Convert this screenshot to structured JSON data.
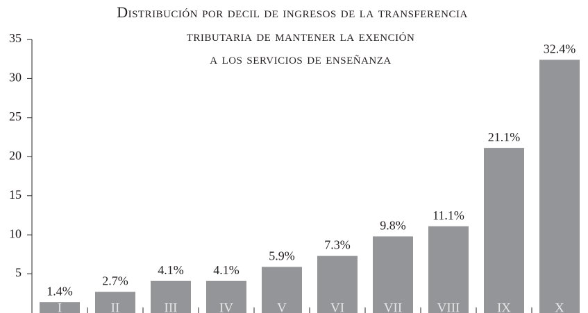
{
  "chart_data": {
    "type": "bar",
    "title": [
      "Distribución por decil de ingresos de la transferencia",
      "tributaria de mantener la exención",
      "a los servicios de enseñanza"
    ],
    "categories": [
      "I",
      "II",
      "III",
      "IV",
      "V",
      "VI",
      "VII",
      "VIII",
      "IX",
      "X"
    ],
    "values": [
      1.4,
      2.7,
      4.1,
      4.1,
      5.9,
      7.3,
      9.8,
      11.1,
      21.1,
      32.4
    ],
    "value_labels": [
      "1.4%",
      "2.7%",
      "4.1%",
      "4.1%",
      "5.9%",
      "7.3%",
      "9.8%",
      "11.1%",
      "21.1%",
      "32.4%"
    ],
    "color": "#939598",
    "ylim": [
      0,
      35
    ],
    "yticks": [
      5,
      10,
      15,
      20,
      25,
      30,
      35
    ],
    "grid": false
  }
}
